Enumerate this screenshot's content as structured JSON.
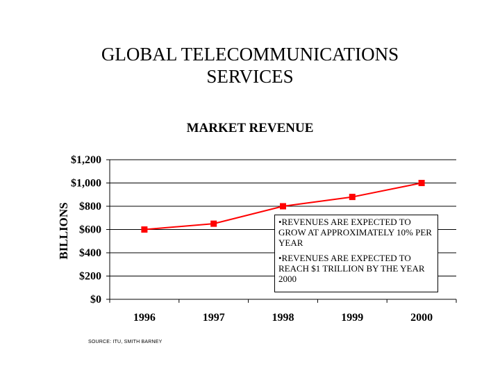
{
  "slide": {
    "title_lines": [
      "GLOBAL TELECOMMUNICATIONS",
      "SERVICES"
    ],
    "source": "SOURCE: ITU, SMITH BARNEY"
  },
  "chart_data": {
    "type": "line",
    "title": "MARKET REVENUE",
    "ylabel": "BILLIONS",
    "xlabel": "",
    "categories": [
      "1996",
      "1997",
      "1998",
      "1999",
      "2000"
    ],
    "series": [
      {
        "values": [
          600,
          650,
          800,
          880,
          1000
        ],
        "color": "#ff0000",
        "marker": "square"
      }
    ],
    "ylim": [
      0,
      1200
    ],
    "yticks": [
      0,
      200,
      400,
      600,
      800,
      1000,
      1200
    ],
    "ytick_labels": [
      "$0",
      "$200",
      "$400",
      "$600",
      "$800",
      "$1,000",
      "$1,200"
    ],
    "grid": "horizontal",
    "annotations": [
      "•REVENUES ARE EXPECTED TO GROW AT APPROXIMATELY 10% PER YEAR",
      "•REVENUES ARE EXPECTED TO REACH $1 TRILLION BY THE YEAR 2000"
    ]
  }
}
